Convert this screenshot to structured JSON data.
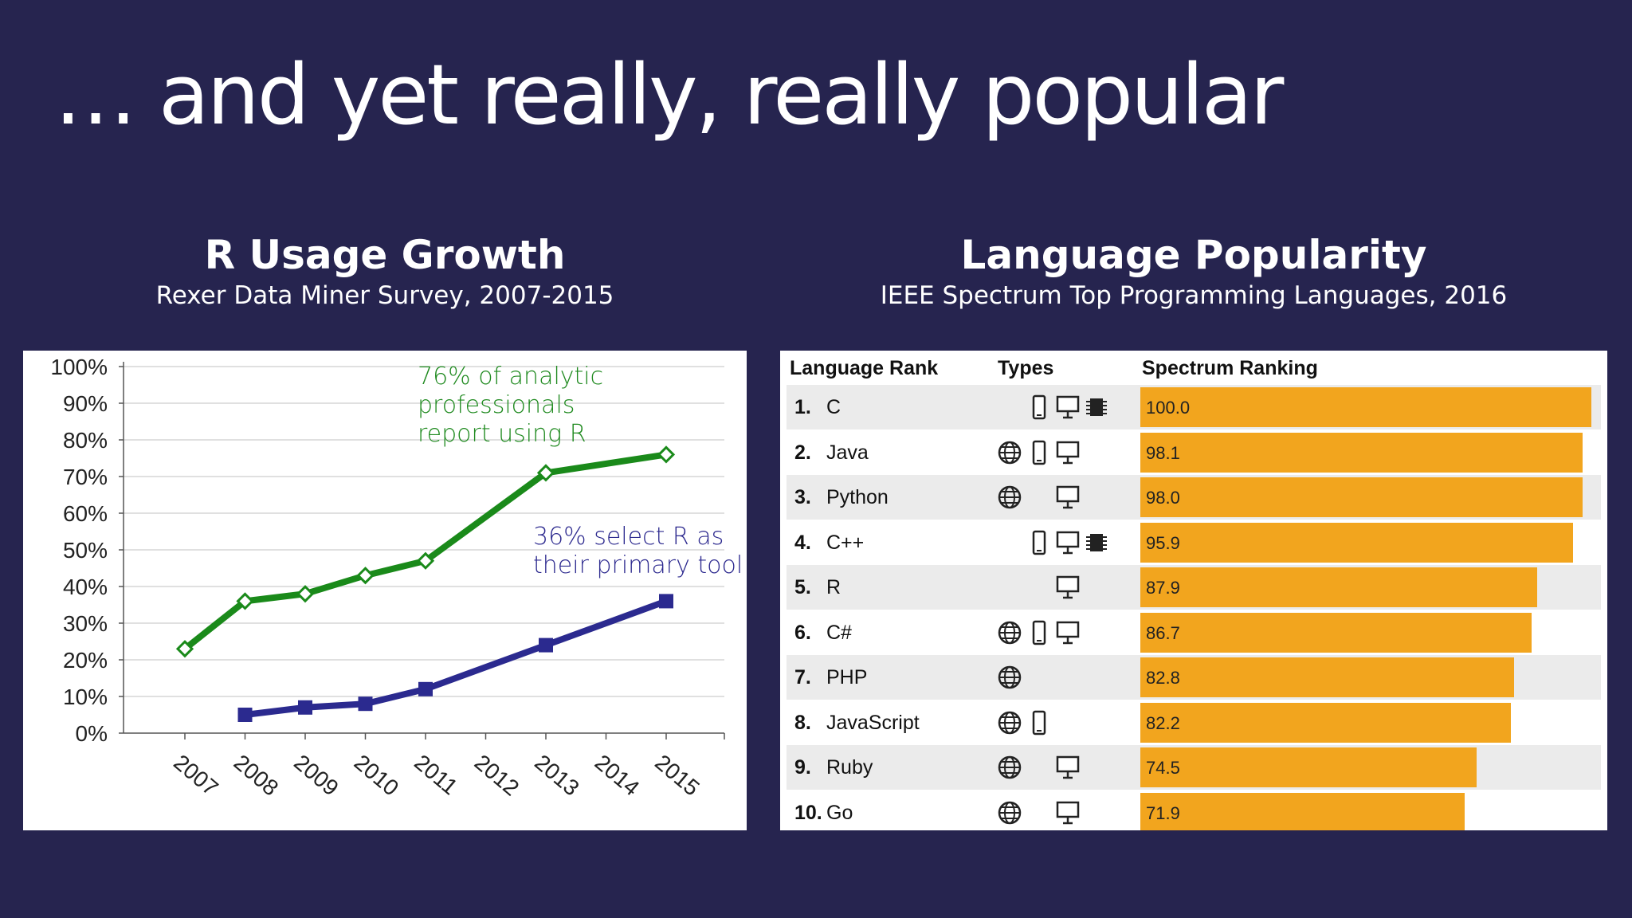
{
  "slide": {
    "title": "… and yet really, really popular"
  },
  "left": {
    "heading": "R Usage Growth",
    "subheading": "Rexer Data Miner Survey, 2007-2015"
  },
  "right": {
    "heading": "Language Popularity",
    "subheading": "IEEE Spectrum Top Programming Languages, 2016"
  },
  "chart_data": [
    {
      "type": "line",
      "x": [
        "2007",
        "2008",
        "2009",
        "2010",
        "2011",
        "2012",
        "2013",
        "2014",
        "2015"
      ],
      "ylim": [
        0,
        100
      ],
      "yticks": [
        "0%",
        "10%",
        "20%",
        "30%",
        "40%",
        "50%",
        "60%",
        "70%",
        "80%",
        "90%",
        "100%"
      ],
      "grid": true,
      "series": [
        {
          "key": "any",
          "color": "#1a8a1a",
          "marker": "diamond",
          "points": [
            [
              2007,
              23
            ],
            [
              2008,
              36
            ],
            [
              2009,
              38
            ],
            [
              2010,
              43
            ],
            [
              2011,
              47
            ],
            [
              2013,
              71
            ],
            [
              2015,
              76
            ]
          ]
        },
        {
          "key": "primary",
          "color": "#2b2a8f",
          "marker": "square",
          "points": [
            [
              2008,
              5
            ],
            [
              2009,
              7
            ],
            [
              2010,
              8
            ],
            [
              2011,
              12
            ],
            [
              2013,
              24
            ],
            [
              2015,
              36
            ]
          ]
        }
      ],
      "annotations": [
        {
          "key": "any",
          "lines": [
            "76% of analytic",
            "professionals",
            "report using R"
          ]
        },
        {
          "key": "primary",
          "lines": [
            "36% select R as",
            "their primary tool"
          ]
        }
      ]
    },
    {
      "type": "bar",
      "orientation": "horizontal",
      "headers": {
        "rank": "Language Rank",
        "types": "Types",
        "ranking": "Spectrum Ranking"
      },
      "xlim": [
        0,
        100
      ],
      "rows": [
        {
          "rank": "1.",
          "language": "C",
          "value": 100.0,
          "label": "100.0",
          "types": [
            "mobile",
            "desktop",
            "embedded"
          ]
        },
        {
          "rank": "2.",
          "language": "Java",
          "value": 98.1,
          "label": "98.1",
          "types": [
            "web",
            "mobile",
            "desktop"
          ]
        },
        {
          "rank": "3.",
          "language": "Python",
          "value": 98.0,
          "label": "98.0",
          "types": [
            "web",
            "desktop"
          ]
        },
        {
          "rank": "4.",
          "language": "C++",
          "value": 95.9,
          "label": "95.9",
          "types": [
            "mobile",
            "desktop",
            "embedded"
          ]
        },
        {
          "rank": "5.",
          "language": "R",
          "value": 87.9,
          "label": "87.9",
          "types": [
            "desktop"
          ]
        },
        {
          "rank": "6.",
          "language": "C#",
          "value": 86.7,
          "label": "86.7",
          "types": [
            "web",
            "mobile",
            "desktop"
          ]
        },
        {
          "rank": "7.",
          "language": "PHP",
          "value": 82.8,
          "label": "82.8",
          "types": [
            "web"
          ]
        },
        {
          "rank": "8.",
          "language": "JavaScript",
          "value": 82.2,
          "label": "82.2",
          "types": [
            "web",
            "mobile"
          ]
        },
        {
          "rank": "9.",
          "language": "Ruby",
          "value": 74.5,
          "label": "74.5",
          "types": [
            "web",
            "desktop"
          ]
        },
        {
          "rank": "10.",
          "language": "Go",
          "value": 71.9,
          "label": "71.9",
          "types": [
            "web",
            "desktop"
          ]
        }
      ],
      "bar_color": "#f2a51e"
    }
  ]
}
